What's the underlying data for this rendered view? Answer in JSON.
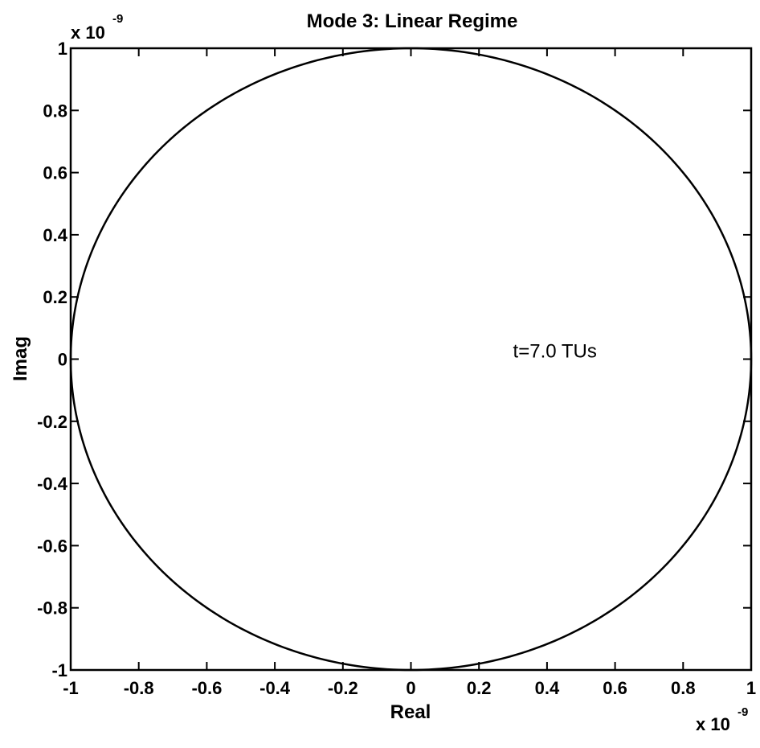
{
  "chart_data": {
    "type": "line",
    "title": "Mode 3: Linear Regime",
    "xlabel": "Real",
    "ylabel": "Imag",
    "xlim": [
      -1,
      1
    ],
    "ylim": [
      -1,
      1
    ],
    "x_ticks": [
      "-1",
      "-0.8",
      "-0.6",
      "-0.4",
      "-0.2",
      "0",
      "0.2",
      "0.4",
      "0.6",
      "0.8",
      "1"
    ],
    "y_ticks": [
      "-1",
      "-0.8",
      "-0.6",
      "-0.4",
      "-0.2",
      "0",
      "0.2",
      "0.4",
      "0.6",
      "0.8",
      "1"
    ],
    "x_tick_values": [
      -1,
      -0.8,
      -0.6,
      -0.4,
      -0.2,
      0,
      0.2,
      0.4,
      0.6,
      0.8,
      1
    ],
    "y_tick_values": [
      -1,
      -0.8,
      -0.6,
      -0.4,
      -0.2,
      0,
      0.2,
      0.4,
      0.6,
      0.8,
      1
    ],
    "x_multiplier": {
      "base": "x 10",
      "exponent": "-9"
    },
    "y_multiplier": {
      "base": "x 10",
      "exponent": "-9"
    },
    "annotation": {
      "text": "t=7.0 TUs",
      "x": 0.3,
      "y": 0.0
    },
    "grid": false,
    "series": [
      {
        "shape": "circle",
        "center": [
          0,
          0
        ],
        "radius": 1.0,
        "color": "#000000"
      }
    ]
  }
}
